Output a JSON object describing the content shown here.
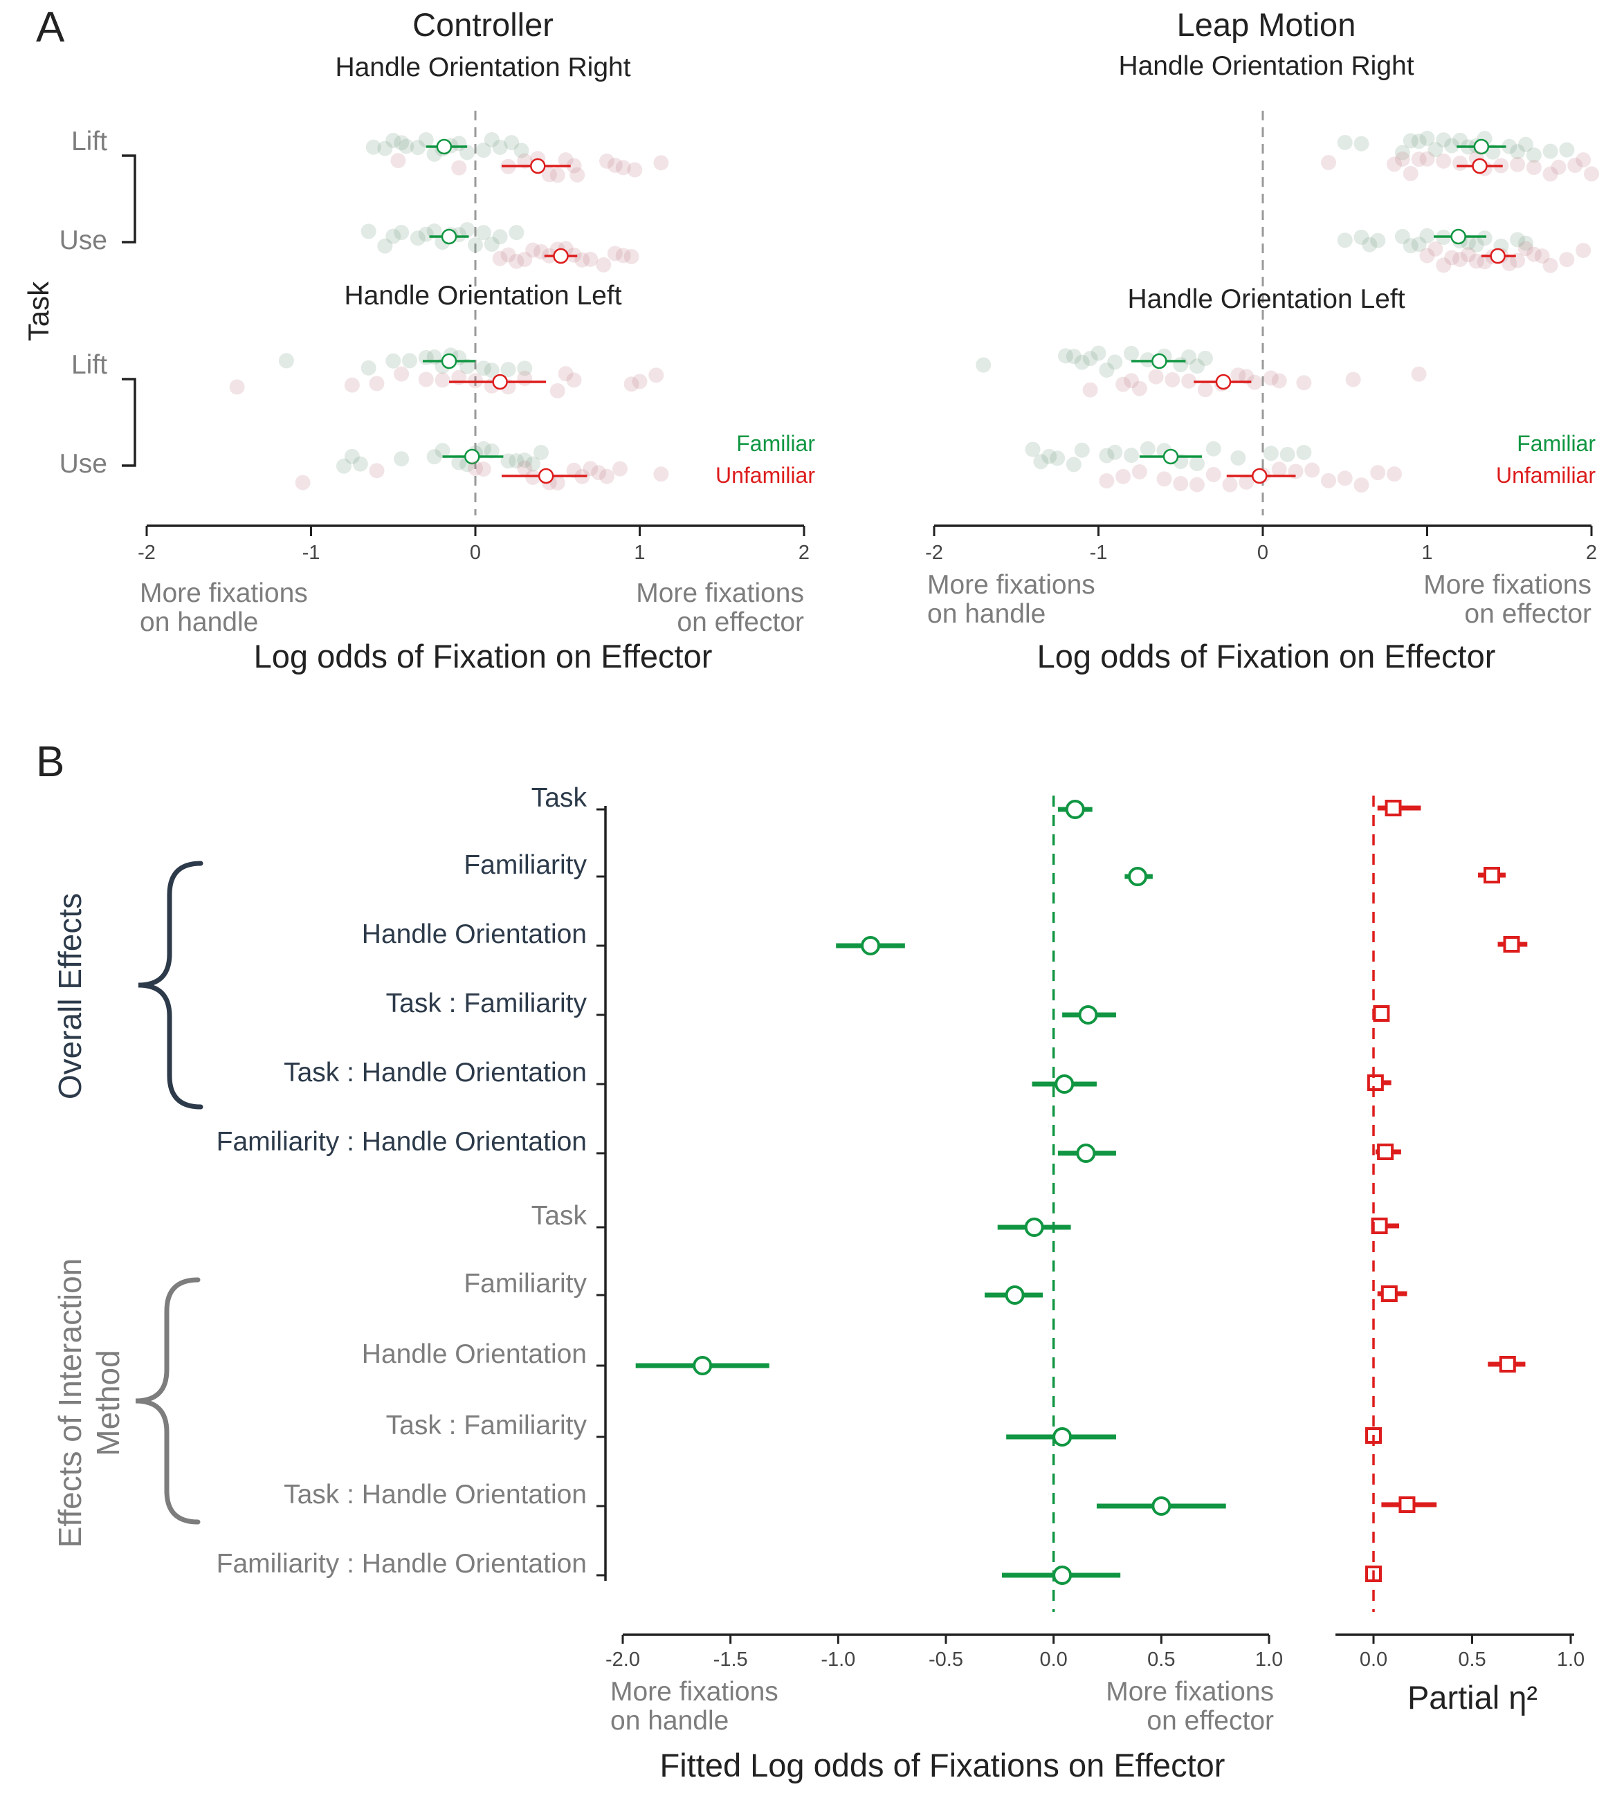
{
  "colors": {
    "familiar": "#109642",
    "unfamiliar": "#dd1c1c",
    "dark": "#2c3a4a",
    "gray": "#7d7d7d",
    "axis": "#222222",
    "dash": "#999999",
    "effects": "#109642",
    "eta": "#dd1c1c"
  },
  "panelA": {
    "label": "A",
    "task_label": "Task",
    "legend": {
      "familiar": "Familiar",
      "unfamiliar": "Unfamiliar"
    },
    "xticks": [
      -2,
      -1,
      0,
      1,
      2
    ],
    "xtick_labels": [
      "-2",
      "-1",
      "0",
      "1",
      "2"
    ],
    "left_note": [
      "More fixations",
      "on handle"
    ],
    "right_note_controller": [
      "More fixations",
      "on effector"
    ],
    "right_note_leap": [
      "More  fixations",
      "on effector"
    ],
    "xlabel": "Log odds of Fixation on Effector"
  },
  "panelB": {
    "label": "B",
    "group1_label": "Overall Effects",
    "group2_label": [
      "Effects of Interaction",
      "Method"
    ],
    "left_axis": {
      "ticks": [
        -2.0,
        -1.5,
        -1.0,
        -0.5,
        0.0,
        0.5,
        1.0
      ],
      "tick_labels": [
        "-2.0",
        "-1.5",
        "-1.0",
        "-0.5",
        "0.0",
        "0.5",
        "1.0"
      ],
      "left_note": [
        "More fixations",
        "on handle"
      ],
      "right_note": [
        "More fixations",
        "on effector"
      ],
      "xlabel": "Fitted Log odds of Fixations on Effector"
    },
    "right_axis": {
      "ticks": [
        0.0,
        0.5,
        1.0
      ],
      "tick_labels": [
        "0.0",
        "0.5",
        "1.0"
      ],
      "xlabel": "Partial η²"
    }
  },
  "chart_data": [
    {
      "type": "scatter",
      "title": "Controller",
      "xlabel": "Log odds of Fixation on Effector",
      "xlim": [
        -2,
        2
      ],
      "reference_line_x": 0,
      "subpanels": [
        {
          "title": "Handle Orientation Right",
          "rows": [
            {
              "task": "Lift",
              "series": [
                {
                  "name": "Familiar",
                  "mean": -0.19,
                  "ci": [
                    -0.3,
                    -0.05
                  ],
                  "points": [
                    -0.62,
                    -0.55,
                    -0.5,
                    -0.45,
                    -0.42,
                    -0.35,
                    -0.3,
                    -0.25,
                    -0.2,
                    -0.15,
                    -0.1,
                    -0.05,
                    0.05,
                    0.1,
                    0.15,
                    0.22,
                    0.28
                  ]
                },
                {
                  "name": "Unfamiliar",
                  "mean": 0.38,
                  "ci": [
                    0.16,
                    0.58
                  ],
                  "points": [
                    -0.47,
                    -0.1,
                    0.2,
                    0.3,
                    0.38,
                    0.45,
                    0.5,
                    0.55,
                    0.6,
                    0.62,
                    0.8,
                    0.85,
                    0.9,
                    0.97,
                    1.13
                  ]
                }
              ]
            },
            {
              "task": "Use",
              "series": [
                {
                  "name": "Familiar",
                  "mean": -0.16,
                  "ci": [
                    -0.28,
                    -0.04
                  ],
                  "points": [
                    -0.65,
                    -0.55,
                    -0.5,
                    -0.45,
                    -0.35,
                    -0.3,
                    -0.25,
                    -0.2,
                    -0.15,
                    -0.1,
                    -0.05,
                    0.0,
                    0.05,
                    0.1,
                    0.15,
                    0.25
                  ]
                },
                {
                  "name": "Unfamiliar",
                  "mean": 0.52,
                  "ci": [
                    0.42,
                    0.62
                  ],
                  "points": [
                    0.15,
                    0.2,
                    0.25,
                    0.3,
                    0.35,
                    0.4,
                    0.45,
                    0.5,
                    0.55,
                    0.6,
                    0.65,
                    0.7,
                    0.78,
                    0.85,
                    0.9,
                    0.95
                  ]
                }
              ]
            }
          ]
        },
        {
          "title": "Handle Orientation Left",
          "rows": [
            {
              "task": "Lift",
              "series": [
                {
                  "name": "Familiar",
                  "mean": -0.16,
                  "ci": [
                    -0.32,
                    0.0
                  ],
                  "points": [
                    -1.15,
                    -0.65,
                    -0.5,
                    -0.4,
                    -0.3,
                    -0.25,
                    -0.2,
                    -0.15,
                    -0.1,
                    -0.05,
                    0.05,
                    0.1,
                    0.2,
                    0.3
                  ]
                },
                {
                  "name": "Unfamiliar",
                  "mean": 0.15,
                  "ci": [
                    -0.16,
                    0.43
                  ],
                  "points": [
                    -1.45,
                    -0.75,
                    -0.6,
                    -0.45,
                    -0.3,
                    -0.2,
                    -0.1,
                    0.0,
                    0.1,
                    0.2,
                    0.3,
                    0.5,
                    0.55,
                    0.6,
                    0.95,
                    1.0,
                    1.1
                  ]
                }
              ]
            },
            {
              "task": "Use",
              "series": [
                {
                  "name": "Familiar",
                  "mean": -0.02,
                  "ci": [
                    -0.2,
                    0.17
                  ],
                  "points": [
                    -0.8,
                    -0.75,
                    -0.7,
                    -0.45,
                    -0.25,
                    -0.2,
                    -0.1,
                    -0.05,
                    0.0,
                    0.05,
                    0.1,
                    0.2,
                    0.25,
                    0.3,
                    0.35,
                    0.4
                  ]
                },
                {
                  "name": "Unfamiliar",
                  "mean": 0.43,
                  "ci": [
                    0.16,
                    0.68
                  ],
                  "points": [
                    -1.05,
                    -0.6,
                    0.0,
                    0.05,
                    0.3,
                    0.35,
                    0.45,
                    0.5,
                    0.6,
                    0.65,
                    0.7,
                    0.75,
                    0.8,
                    0.88,
                    1.13
                  ]
                }
              ]
            }
          ]
        }
      ]
    },
    {
      "type": "scatter",
      "title": "Leap Motion",
      "xlabel": "Log odds of Fixation on Effector",
      "xlim": [
        -2,
        2
      ],
      "reference_line_x": 0,
      "subpanels": [
        {
          "title": "Handle Orientation Right",
          "rows": [
            {
              "task": "Lift",
              "series": [
                {
                  "name": "Familiar",
                  "mean": 1.33,
                  "ci": [
                    1.18,
                    1.48
                  ],
                  "points": [
                    0.5,
                    0.6,
                    0.85,
                    0.9,
                    0.95,
                    1.0,
                    1.05,
                    1.1,
                    1.15,
                    1.2,
                    1.25,
                    1.3,
                    1.35,
                    1.4,
                    1.5,
                    1.55,
                    1.6,
                    1.65,
                    1.75,
                    1.85
                  ]
                },
                {
                  "name": "Unfamiliar",
                  "mean": 1.32,
                  "ci": [
                    1.18,
                    1.46
                  ],
                  "points": [
                    0.4,
                    0.8,
                    0.85,
                    0.9,
                    0.95,
                    1.0,
                    1.1,
                    1.2,
                    1.3,
                    1.35,
                    1.45,
                    1.55,
                    1.65,
                    1.75,
                    1.8,
                    1.9,
                    1.95,
                    2.0
                  ]
                }
              ]
            },
            {
              "task": "Use",
              "series": [
                {
                  "name": "Familiar",
                  "mean": 1.19,
                  "ci": [
                    1.04,
                    1.36
                  ],
                  "points": [
                    0.5,
                    0.6,
                    0.65,
                    0.7,
                    0.85,
                    0.9,
                    0.95,
                    1.0,
                    1.1,
                    1.2,
                    1.25,
                    1.3,
                    1.35,
                    1.45,
                    1.55,
                    1.6
                  ]
                },
                {
                  "name": "Unfamiliar",
                  "mean": 1.43,
                  "ci": [
                    1.33,
                    1.54
                  ],
                  "points": [
                    1.0,
                    1.05,
                    1.1,
                    1.15,
                    1.2,
                    1.25,
                    1.3,
                    1.35,
                    1.4,
                    1.45,
                    1.5,
                    1.55,
                    1.6,
                    1.65,
                    1.7,
                    1.75,
                    1.85,
                    1.95
                  ]
                }
              ]
            }
          ]
        },
        {
          "title": "Handle Orientation Left",
          "rows": [
            {
              "task": "Lift",
              "series": [
                {
                  "name": "Familiar",
                  "mean": -0.63,
                  "ci": [
                    -0.8,
                    -0.47
                  ],
                  "points": [
                    -1.7,
                    -1.2,
                    -1.15,
                    -1.1,
                    -1.05,
                    -1.0,
                    -0.95,
                    -0.9,
                    -0.8,
                    -0.7,
                    -0.6,
                    -0.5,
                    -0.45,
                    -0.4,
                    -0.35
                  ]
                },
                {
                  "name": "Unfamiliar",
                  "mean": -0.24,
                  "ci": [
                    -0.42,
                    -0.07
                  ],
                  "points": [
                    -1.05,
                    -0.85,
                    -0.8,
                    -0.75,
                    -0.65,
                    -0.55,
                    -0.45,
                    -0.35,
                    -0.25,
                    -0.15,
                    -0.1,
                    -0.05,
                    0.05,
                    0.1,
                    0.25,
                    0.55,
                    0.95
                  ]
                }
              ]
            },
            {
              "task": "Use",
              "series": [
                {
                  "name": "Familiar",
                  "mean": -0.56,
                  "ci": [
                    -0.75,
                    -0.37
                  ],
                  "points": [
                    -1.4,
                    -1.35,
                    -1.3,
                    -1.25,
                    -1.15,
                    -1.1,
                    -0.95,
                    -0.9,
                    -0.8,
                    -0.7,
                    -0.6,
                    -0.5,
                    -0.4,
                    -0.3,
                    -0.15,
                    0.05,
                    0.15,
                    0.25
                  ]
                },
                {
                  "name": "Unfamiliar",
                  "mean": -0.02,
                  "ci": [
                    -0.22,
                    0.2
                  ],
                  "points": [
                    -0.95,
                    -0.85,
                    -0.75,
                    -0.6,
                    -0.5,
                    -0.4,
                    -0.3,
                    -0.2,
                    -0.1,
                    0.0,
                    0.1,
                    0.2,
                    0.3,
                    0.4,
                    0.5,
                    0.6,
                    0.7,
                    0.8
                  ]
                }
              ]
            }
          ]
        }
      ]
    },
    {
      "type": "scatter",
      "title": "",
      "xlabel": "Fitted Log odds of Fixations on Effector",
      "xlim": [
        -2.0,
        1.0
      ],
      "reference_line_x": 0.0,
      "groups": [
        {
          "name": "Overall Effects",
          "items": [
            {
              "label": "Task",
              "estimate": 0.1,
              "ci": [
                0.02,
                0.18
              ]
            },
            {
              "label": "Familiarity",
              "estimate": 0.39,
              "ci": [
                0.33,
                0.46
              ]
            },
            {
              "label": "Handle Orientation",
              "estimate": -0.85,
              "ci": [
                -1.01,
                -0.69
              ]
            },
            {
              "label": "Task : Familiarity",
              "estimate": 0.16,
              "ci": [
                0.04,
                0.29
              ]
            },
            {
              "label": "Task : Handle Orientation",
              "estimate": 0.05,
              "ci": [
                -0.1,
                0.2
              ]
            },
            {
              "label": "Familiarity : Handle Orientation",
              "estimate": 0.15,
              "ci": [
                0.02,
                0.29
              ]
            }
          ]
        },
        {
          "name": "Effects of Interaction Method",
          "items": [
            {
              "label": "Task",
              "estimate": -0.09,
              "ci": [
                -0.26,
                0.08
              ]
            },
            {
              "label": "Familiarity",
              "estimate": -0.18,
              "ci": [
                -0.32,
                -0.05
              ]
            },
            {
              "label": "Handle Orientation",
              "estimate": -1.63,
              "ci": [
                -1.94,
                -1.32
              ]
            },
            {
              "label": "Task : Familiarity",
              "estimate": 0.04,
              "ci": [
                -0.22,
                0.29
              ]
            },
            {
              "label": "Task : Handle Orientation",
              "estimate": 0.5,
              "ci": [
                0.2,
                0.8
              ]
            },
            {
              "label": "Familiarity : Handle Orientation",
              "estimate": 0.04,
              "ci": [
                -0.24,
                0.31
              ]
            }
          ]
        }
      ]
    },
    {
      "type": "scatter",
      "title": "",
      "xlabel": "Partial η²",
      "xlim": [
        0.0,
        1.0
      ],
      "reference_line_x": 0.0,
      "groups": [
        {
          "name": "Overall Effects",
          "items": [
            {
              "label": "Task",
              "estimate": 0.1,
              "ci": [
                0.02,
                0.24
              ]
            },
            {
              "label": "Familiarity",
              "estimate": 0.6,
              "ci": [
                0.53,
                0.67
              ]
            },
            {
              "label": "Handle Orientation",
              "estimate": 0.7,
              "ci": [
                0.63,
                0.78
              ]
            },
            {
              "label": "Task : Familiarity",
              "estimate": 0.04,
              "ci": [
                0.01,
                0.08
              ]
            },
            {
              "label": "Task : Handle Orientation",
              "estimate": 0.01,
              "ci": [
                0.0,
                0.09
              ]
            },
            {
              "label": "Familiarity : Handle Orientation",
              "estimate": 0.06,
              "ci": [
                0.01,
                0.14
              ]
            }
          ]
        },
        {
          "name": "Effects of Interaction Method",
          "items": [
            {
              "label": "Task",
              "estimate": 0.03,
              "ci": [
                0.0,
                0.13
              ]
            },
            {
              "label": "Familiarity",
              "estimate": 0.08,
              "ci": [
                0.02,
                0.17
              ]
            },
            {
              "label": "Handle Orientation",
              "estimate": 0.68,
              "ci": [
                0.58,
                0.77
              ]
            },
            {
              "label": "Task : Familiarity",
              "estimate": 0.0,
              "ci": [
                0.0,
                0.03
              ]
            },
            {
              "label": "Task : Handle Orientation",
              "estimate": 0.17,
              "ci": [
                0.04,
                0.32
              ]
            },
            {
              "label": "Familiarity : Handle Orientation",
              "estimate": 0.0,
              "ci": [
                0.0,
                0.03
              ]
            }
          ]
        }
      ]
    }
  ]
}
